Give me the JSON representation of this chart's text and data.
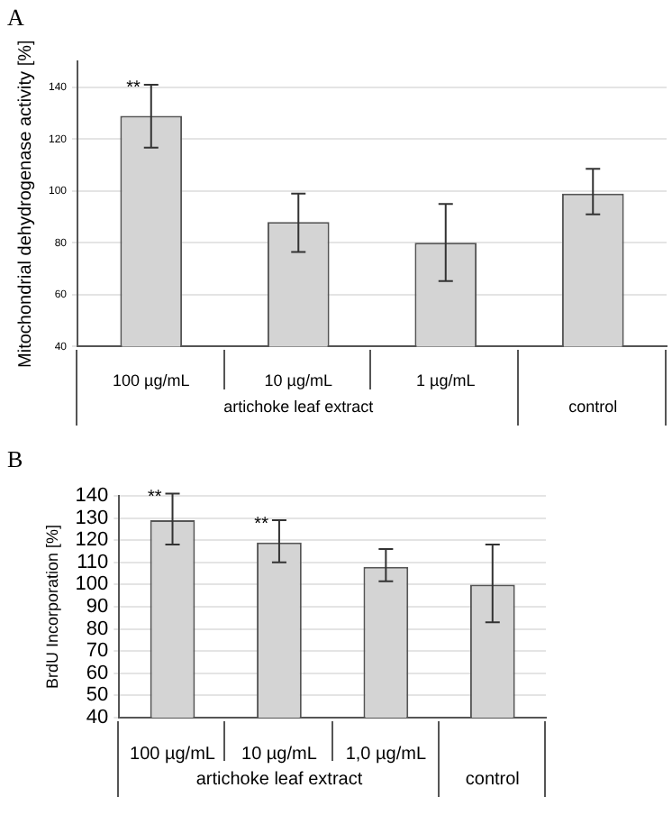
{
  "chart_data": [
    {
      "type": "bar",
      "title": "A",
      "ylabel": "Mitochondrial dehydrogenase activity [%]",
      "categories": [
        "100 µg/mL",
        "10 µg/mL",
        "1 µg/mL",
        null
      ],
      "values": [
        129,
        88,
        80,
        99
      ],
      "color": "#d4d4d4",
      "errors": [
        [
          116.7,
          141
        ],
        [
          76.5,
          99
        ],
        [
          65.3,
          95
        ],
        [
          91,
          108.5
        ]
      ],
      "ylim": [
        40,
        150
      ],
      "yticks": [
        40,
        60,
        80,
        100,
        120,
        140
      ],
      "grid": "y",
      "annotations": [
        {
          "text": "**",
          "x": "100 µg/mL",
          "y": 141
        },
        "artichoke leaf extract",
        "control"
      ]
    },
    {
      "type": "bar",
      "title": "B",
      "ylabel": "BrdU Incorporation [%]",
      "categories": [
        "100 µg/mL",
        "10 µg/mL",
        "1,0 µg/mL",
        null
      ],
      "values": [
        129,
        119,
        108,
        100
      ],
      "color": "#d4d4d4",
      "errors": [
        [
          118,
          141
        ],
        [
          110,
          129
        ],
        [
          101.5,
          116
        ],
        [
          83,
          118
        ]
      ],
      "ylim": [
        40,
        140
      ],
      "yticks": [
        40,
        50,
        60,
        70,
        80,
        90,
        100,
        110,
        120,
        130,
        140
      ],
      "grid": "y",
      "annotations": [
        {
          "text": "**",
          "x": "100 µg/mL",
          "y": 141
        },
        {
          "text": "**",
          "x": "10 µg/mL",
          "y": 129
        },
        "artichoke leaf extract",
        "control"
      ]
    }
  ]
}
